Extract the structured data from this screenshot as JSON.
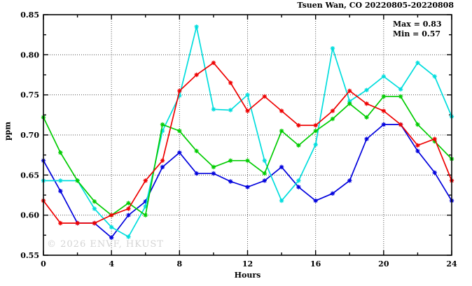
{
  "header": {
    "title": "Tsuen Wan, CO 20220805-20220808"
  },
  "legend": {
    "max_label": "Max = 0.83",
    "min_label": "Min = 0.57"
  },
  "watermark": "© 2026 ENVF, HKUST",
  "chart_data": {
    "type": "line",
    "title": "Tsuen Wan, CO 20220805-20220808",
    "xlabel": "Hours",
    "ylabel": "ppm",
    "xlim": [
      0,
      24
    ],
    "ylim": [
      0.55,
      0.85
    ],
    "grid": true,
    "xticks": [
      0,
      4,
      8,
      12,
      16,
      20,
      24
    ],
    "xtick_labels": [
      "0",
      "4",
      "8",
      "12",
      "16",
      "20",
      "24"
    ],
    "x_minor_ticks": [
      2,
      6,
      10,
      14,
      18,
      22
    ],
    "yticks": [
      0.55,
      0.6,
      0.65,
      0.7,
      0.75,
      0.8,
      0.85
    ],
    "ytick_labels": [
      "0.55",
      "0.60",
      "0.65",
      "0.70",
      "0.75",
      "0.80",
      "0.85"
    ],
    "y_minor_ticks": [
      0.575,
      0.625,
      0.675,
      0.725,
      0.775,
      0.825
    ],
    "x": [
      0,
      1,
      2,
      3,
      4,
      5,
      6,
      7,
      8,
      9,
      10,
      11,
      12,
      13,
      14,
      15,
      16,
      17,
      18,
      19,
      20,
      21,
      22,
      23,
      24
    ],
    "series": [
      {
        "name": "blue",
        "color": "#0000dd",
        "values": [
          0.668,
          0.63,
          0.59,
          0.59,
          0.572,
          0.6,
          0.617,
          0.66,
          0.678,
          0.652,
          0.652,
          0.642,
          0.635,
          0.643,
          0.66,
          0.635,
          0.618,
          0.627,
          0.643,
          0.695,
          0.713,
          0.713,
          0.68,
          0.653,
          0.618
        ]
      },
      {
        "name": "cyan",
        "color": "#00dddd",
        "values": [
          0.643,
          0.643,
          0.643,
          0.608,
          0.585,
          0.573,
          0.611,
          0.705,
          0.749,
          0.835,
          0.732,
          0.731,
          0.75,
          0.668,
          0.618,
          0.643,
          0.688,
          0.808,
          0.742,
          0.756,
          0.773,
          0.757,
          0.79,
          0.773,
          0.723
        ]
      },
      {
        "name": "green",
        "color": "#00cc00",
        "values": [
          0.722,
          0.678,
          0.643,
          0.617,
          0.6,
          0.615,
          0.6,
          0.713,
          0.705,
          0.68,
          0.66,
          0.668,
          0.668,
          0.652,
          0.705,
          0.687,
          0.705,
          0.72,
          0.739,
          0.722,
          0.748,
          0.748,
          0.713,
          0.692,
          0.67
        ]
      },
      {
        "name": "red",
        "color": "#ee0000",
        "values": [
          0.618,
          0.59,
          0.59,
          0.59,
          0.6,
          0.608,
          0.643,
          0.668,
          0.755,
          0.775,
          0.79,
          0.765,
          0.73,
          0.748,
          0.73,
          0.712,
          0.712,
          0.73,
          0.755,
          0.739,
          0.73,
          0.713,
          0.687,
          0.695,
          0.643
        ]
      }
    ],
    "annotations": {
      "max": "0.83",
      "min": "0.57"
    },
    "legend_position": "top-right-inside"
  }
}
